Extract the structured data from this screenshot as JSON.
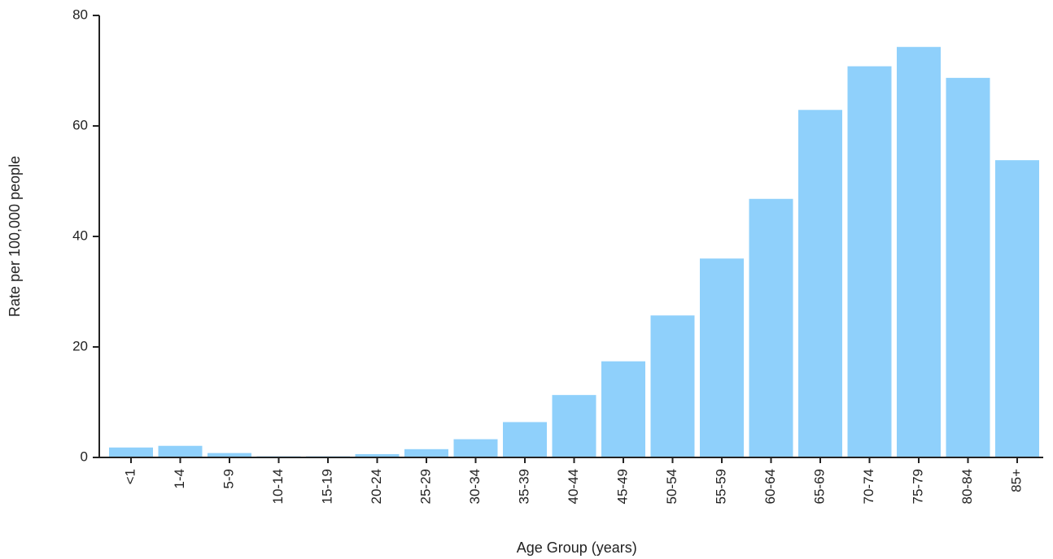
{
  "chart_data": {
    "type": "bar",
    "title": "",
    "xlabel": "Age Group (years)",
    "ylabel": "Rate per 100,000 people",
    "categories": [
      "<1",
      "1-4",
      "5-9",
      "10-14",
      "15-19",
      "20-24",
      "25-29",
      "30-34",
      "35-39",
      "40-44",
      "45-49",
      "50-54",
      "55-59",
      "60-64",
      "65-69",
      "70-74",
      "75-79",
      "80-84",
      "85+"
    ],
    "values": [
      1.8,
      2.1,
      0.8,
      0.2,
      0.2,
      0.6,
      1.5,
      3.3,
      6.4,
      11.3,
      17.4,
      25.7,
      36.0,
      46.8,
      62.9,
      70.8,
      74.3,
      68.7,
      53.8
    ],
    "ylim": [
      0,
      80
    ],
    "yticks": [
      0,
      20,
      40,
      60,
      80
    ],
    "grid": false,
    "legend": "none",
    "bar_color": "#8fd0fb"
  }
}
